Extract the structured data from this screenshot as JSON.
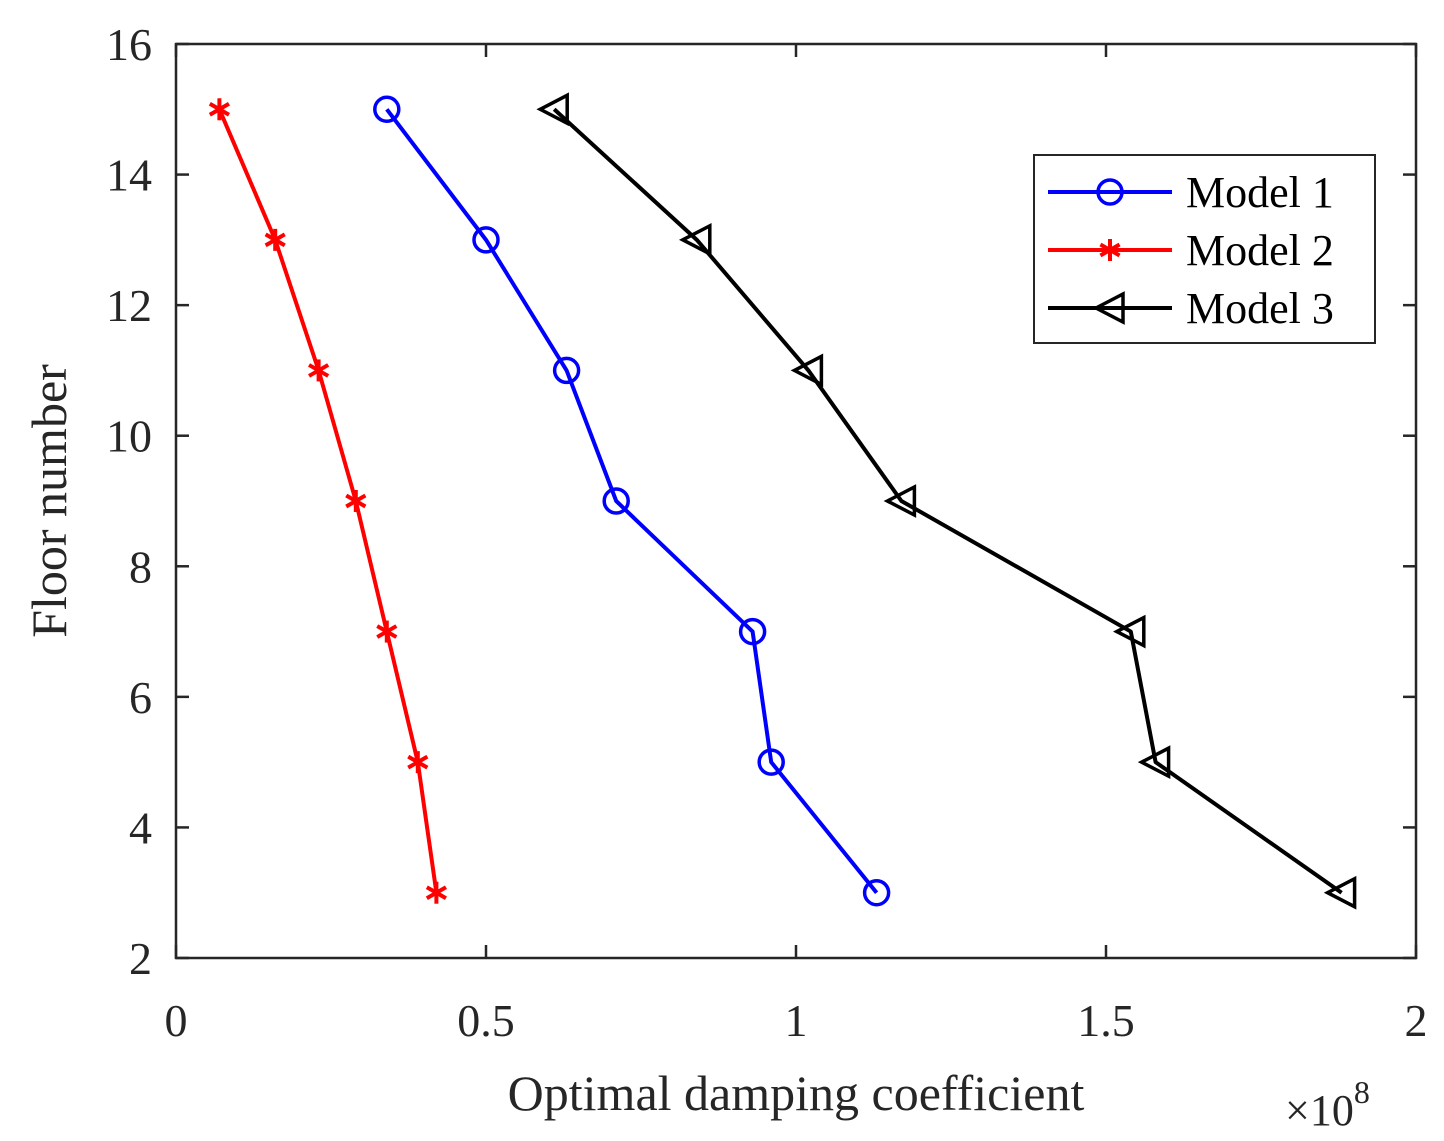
{
  "chart_data": {
    "type": "line",
    "xlabel": "Optimal damping coefficient",
    "ylabel": "Floor number",
    "x_multiplier": "×10",
    "x_multiplier_exp": "8",
    "xlim": [
      0,
      2
    ],
    "ylim": [
      2,
      16
    ],
    "xticks": [
      0,
      0.5,
      1,
      1.5,
      2
    ],
    "xtick_labels": [
      "0",
      "0.5",
      "1",
      "1.5",
      "2"
    ],
    "yticks": [
      2,
      4,
      6,
      8,
      10,
      12,
      14,
      16
    ],
    "ytick_labels": [
      "2",
      "4",
      "6",
      "8",
      "10",
      "12",
      "14",
      "16"
    ],
    "legend_position": "top-right",
    "series": [
      {
        "name": "Model 1",
        "color": "#0000ff",
        "marker": "circle",
        "points": [
          {
            "x": 0.34,
            "y": 15
          },
          {
            "x": 0.5,
            "y": 13
          },
          {
            "x": 0.63,
            "y": 11
          },
          {
            "x": 0.71,
            "y": 9
          },
          {
            "x": 0.93,
            "y": 7
          },
          {
            "x": 0.96,
            "y": 5
          },
          {
            "x": 1.13,
            "y": 3
          }
        ]
      },
      {
        "name": "Model 2",
        "color": "#ff0000",
        "marker": "asterisk",
        "points": [
          {
            "x": 0.07,
            "y": 15
          },
          {
            "x": 0.16,
            "y": 13
          },
          {
            "x": 0.23,
            "y": 11
          },
          {
            "x": 0.29,
            "y": 9
          },
          {
            "x": 0.34,
            "y": 7
          },
          {
            "x": 0.39,
            "y": 5
          },
          {
            "x": 0.42,
            "y": 3
          }
        ]
      },
      {
        "name": "Model 3",
        "color": "#000000",
        "marker": "triangle-left",
        "points": [
          {
            "x": 0.61,
            "y": 15
          },
          {
            "x": 0.84,
            "y": 13
          },
          {
            "x": 1.02,
            "y": 11
          },
          {
            "x": 1.17,
            "y": 9
          },
          {
            "x": 1.54,
            "y": 7
          },
          {
            "x": 1.58,
            "y": 5
          },
          {
            "x": 1.88,
            "y": 3
          }
        ]
      }
    ]
  }
}
